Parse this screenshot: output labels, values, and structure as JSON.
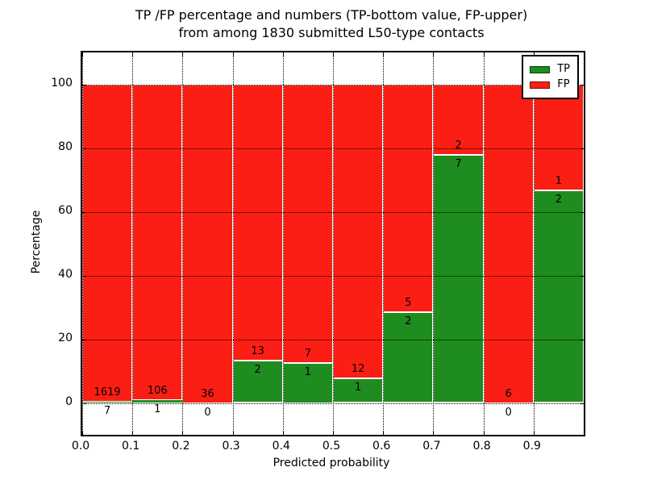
{
  "title": {
    "line1": "TP /FP percentage and numbers (TP-bottom value, FP-upper)",
    "line2": "from among 1830 submitted L50-type contacts"
  },
  "chart_data": {
    "type": "bar",
    "stacked": true,
    "normalized_to_percent": 100,
    "total_contacts_in_title": 1830,
    "bin_width": 0.1,
    "bin_starts": [
      0.0,
      0.1,
      0.2,
      0.3,
      0.4,
      0.5,
      0.6,
      0.7,
      0.8,
      0.9
    ],
    "series": [
      {
        "name": "TP",
        "color": "#1e8c1e",
        "counts": [
          7,
          1,
          0,
          2,
          1,
          1,
          2,
          7,
          0,
          2
        ]
      },
      {
        "name": "FP",
        "color": "#fb1e14",
        "counts": [
          1619,
          106,
          36,
          13,
          7,
          12,
          5,
          2,
          6,
          1
        ]
      }
    ],
    "tp_percent_by_bin": [
      0.43,
      0.93,
      0.0,
      13.33,
      12.5,
      7.69,
      28.57,
      77.78,
      0.0,
      66.67
    ],
    "xlabel": "Predicted probability",
    "ylabel": "Percentage",
    "x_tick_labels": [
      "0.0",
      "0.1",
      "0.2",
      "0.3",
      "0.4",
      "0.5",
      "0.6",
      "0.7",
      "0.8",
      "0.9"
    ],
    "y_ticks": [
      0,
      20,
      40,
      60,
      80,
      100
    ],
    "xlim": [
      0.0,
      1.0
    ],
    "ylim": [
      -10,
      110
    ],
    "grid": "dotted black, both axes",
    "legend": {
      "position": "upper-right",
      "entries": [
        {
          "label": "TP",
          "color": "#1e8c1e"
        },
        {
          "label": "FP",
          "color": "#fb1e14"
        }
      ]
    }
  }
}
